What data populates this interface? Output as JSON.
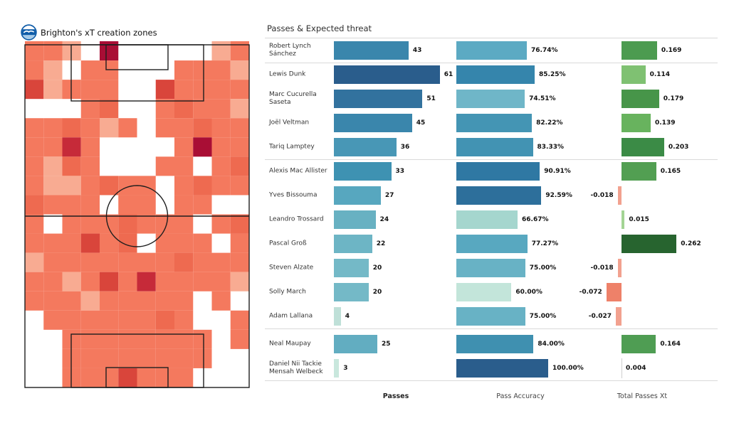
{
  "pitch_panel": {
    "title": "Brighton's xT creation zones",
    "logo": "brighton-crest",
    "heatmap_palette": [
      "#ffffff",
      "#fbcdb9",
      "#f8ab92",
      "#f4795e",
      "#ee6a50",
      "#d9453b",
      "#c62a39",
      "#a90e35"
    ],
    "heatmap_grid": [
      [
        3,
        3,
        2,
        0,
        7,
        0,
        0,
        0,
        0,
        0,
        2,
        3
      ],
      [
        3,
        2,
        0,
        3,
        3,
        0,
        0,
        0,
        3,
        3,
        3,
        2
      ],
      [
        5,
        2,
        3,
        3,
        3,
        0,
        0,
        5,
        3,
        3,
        3,
        3
      ],
      [
        0,
        0,
        0,
        3,
        4,
        0,
        0,
        3,
        4,
        3,
        3,
        2
      ],
      [
        3,
        3,
        4,
        3,
        2,
        3,
        0,
        3,
        3,
        4,
        3,
        3
      ],
      [
        3,
        3,
        6,
        3,
        0,
        0,
        0,
        0,
        3,
        7,
        3,
        3
      ],
      [
        3,
        2,
        4,
        3,
        0,
        0,
        0,
        3,
        3,
        0,
        3,
        4
      ],
      [
        3,
        2,
        2,
        3,
        4,
        3,
        3,
        0,
        3,
        4,
        3,
        3
      ],
      [
        4,
        3,
        3,
        3,
        0,
        3,
        3,
        0,
        3,
        3,
        0,
        0
      ],
      [
        3,
        0,
        3,
        3,
        3,
        4,
        3,
        3,
        3,
        0,
        3,
        4
      ],
      [
        3,
        3,
        3,
        5,
        3,
        4,
        0,
        3,
        3,
        3,
        0,
        3
      ],
      [
        2,
        3,
        3,
        3,
        3,
        3,
        3,
        3,
        4,
        3,
        3,
        3
      ],
      [
        3,
        3,
        2,
        3,
        5,
        3,
        6,
        3,
        3,
        3,
        3,
        2
      ],
      [
        3,
        3,
        3,
        2,
        3,
        3,
        3,
        3,
        3,
        0,
        3,
        0
      ],
      [
        0,
        3,
        3,
        3,
        3,
        3,
        3,
        4,
        3,
        0,
        0,
        3
      ],
      [
        0,
        0,
        3,
        3,
        3,
        3,
        3,
        3,
        3,
        3,
        0,
        3
      ],
      [
        0,
        0,
        3,
        3,
        3,
        3,
        3,
        3,
        3,
        3,
        0,
        0
      ],
      [
        0,
        0,
        3,
        3,
        3,
        5,
        3,
        3,
        3,
        0,
        0,
        0
      ]
    ]
  },
  "chart": {
    "title": "Passes & Expected threat",
    "columns": {
      "passes": "Passes",
      "accuracy": "Pass Accuracy",
      "xt": "Total Passes Xt"
    },
    "separators_after_rows": [
      0,
      4,
      11,
      13
    ],
    "players": [
      {
        "name": "Robert Lynch Sánchez",
        "passes": 43,
        "passes_color": "#3a86ac",
        "accuracy": 76.74,
        "accuracy_label": "76.74%",
        "accuracy_color": "#5caac3",
        "xt": 0.169,
        "xt_label": "0.169",
        "xt_color": "#4c9b50"
      },
      {
        "name": "Lewis Dunk",
        "passes": 61,
        "passes_color": "#2a5d8c",
        "accuracy": 85.25,
        "accuracy_label": "85.25%",
        "accuracy_color": "#3585ac",
        "xt": 0.114,
        "xt_label": "0.114",
        "xt_color": "#7fc172"
      },
      {
        "name": "Marc Cucurella Saseta",
        "passes": 51,
        "passes_color": "#32729e",
        "accuracy": 74.51,
        "accuracy_label": "74.51%",
        "accuracy_color": "#6fb6c8",
        "xt": 0.179,
        "xt_label": "0.179",
        "xt_color": "#479549"
      },
      {
        "name": "Joël Veltman",
        "passes": 45,
        "passes_color": "#3a86ac",
        "accuracy": 82.22,
        "accuracy_label": "82.22%",
        "accuracy_color": "#4495b4",
        "xt": 0.139,
        "xt_label": "0.139",
        "xt_color": "#68b35e"
      },
      {
        "name": "Tariq Lamptey",
        "passes": 36,
        "passes_color": "#4897b6",
        "accuracy": 83.33,
        "accuracy_label": "83.33%",
        "accuracy_color": "#4293b3",
        "xt": 0.203,
        "xt_label": "0.203",
        "xt_color": "#3b8b46"
      },
      {
        "name": "Alexis Mac Allister",
        "passes": 33,
        "passes_color": "#3e92b2",
        "accuracy": 90.91,
        "accuracy_label": "90.91%",
        "accuracy_color": "#2f78a3",
        "xt": 0.165,
        "xt_label": "0.165",
        "xt_color": "#529f52"
      },
      {
        "name": "Yves Bissouma",
        "passes": 27,
        "passes_color": "#57a7bf",
        "accuracy": 92.59,
        "accuracy_label": "92.59%",
        "accuracy_color": "#2d6f9b",
        "xt": -0.018,
        "xt_label": "-0.018",
        "xt_color": "#f2a18f"
      },
      {
        "name": "Leandro Trossard",
        "passes": 24,
        "passes_color": "#68b1c2",
        "accuracy": 66.67,
        "accuracy_label": "66.67%",
        "accuracy_color": "#a5d6ce",
        "xt": 0.015,
        "xt_label": "0.015",
        "xt_color": "#a3d494"
      },
      {
        "name": "Pascal Groß",
        "passes": 22,
        "passes_color": "#6db5c5",
        "accuracy": 77.27,
        "accuracy_label": "77.27%",
        "accuracy_color": "#58a8c0",
        "xt": 0.262,
        "xt_label": "0.262",
        "xt_color": "#27642f"
      },
      {
        "name": "Steven Alzate",
        "passes": 20,
        "passes_color": "#74b9c7",
        "accuracy": 75.0,
        "accuracy_label": "75.00%",
        "accuracy_color": "#68b2c5",
        "xt": -0.018,
        "xt_label": "-0.018",
        "xt_color": "#f2a18f"
      },
      {
        "name": "Solly March",
        "passes": 20,
        "passes_color": "#74b9c7",
        "accuracy": 60.0,
        "accuracy_label": "60.00%",
        "accuracy_color": "#c3e5da",
        "xt": -0.072,
        "xt_label": "-0.072",
        "xt_color": "#ee8169"
      },
      {
        "name": "Adam Lallana",
        "passes": 4,
        "passes_color": "#bfe0d8",
        "accuracy": 75.0,
        "accuracy_label": "75.00%",
        "accuracy_color": "#68b2c5",
        "xt": -0.027,
        "xt_label": "-0.027",
        "xt_color": "#f2a18f"
      },
      {
        "name": "Neal Maupay",
        "passes": 25,
        "passes_color": "#62adc1",
        "accuracy": 84.0,
        "accuracy_label": "84.00%",
        "accuracy_color": "#3f90b0",
        "xt": 0.164,
        "xt_label": "0.164",
        "xt_color": "#4f9d53"
      },
      {
        "name": "Daniel Nii Tackie Mensah Welbeck",
        "passes": 3,
        "passes_color": "#c9e7dd",
        "accuracy": 100.0,
        "accuracy_label": "100.00%",
        "accuracy_color": "#2a5d8c",
        "xt": 0.004,
        "xt_label": "0.004",
        "xt_color": "#d9efd3"
      }
    ]
  },
  "chart_data": [
    {
      "type": "heatmap",
      "title": "Brighton's xT creation zones",
      "rows": 18,
      "cols": 12,
      "note": "xT creation intensity bins per pitch zone, 0 = none (white) to 7 = highest (dark crimson)",
      "values": "see pitch_panel.heatmap_grid"
    },
    {
      "type": "bar",
      "orientation": "horizontal",
      "title": "Passes & Expected threat",
      "categories": [
        "Robert Lynch Sánchez",
        "Lewis Dunk",
        "Marc Cucurella Saseta",
        "Joël Veltman",
        "Tariq Lamptey",
        "Alexis Mac Allister",
        "Yves Bissouma",
        "Leandro Trossard",
        "Pascal Groß",
        "Steven Alzate",
        "Solly March",
        "Adam Lallana",
        "Neal Maupay",
        "Daniel Nii Tackie Mensah Welbeck"
      ],
      "series": [
        {
          "name": "Passes",
          "values": [
            43,
            61,
            51,
            45,
            36,
            33,
            27,
            24,
            22,
            20,
            20,
            4,
            25,
            3
          ]
        },
        {
          "name": "Pass Accuracy",
          "values": [
            76.74,
            85.25,
            74.51,
            82.22,
            83.33,
            90.91,
            92.59,
            66.67,
            77.27,
            75.0,
            60.0,
            75.0,
            84.0,
            100.0
          ]
        },
        {
          "name": "Total Passes Xt",
          "values": [
            0.169,
            0.114,
            0.179,
            0.139,
            0.203,
            0.165,
            -0.018,
            0.015,
            0.262,
            -0.018,
            -0.072,
            -0.027,
            0.164,
            0.004
          ]
        }
      ],
      "legend": "none",
      "grid": "off"
    }
  ]
}
